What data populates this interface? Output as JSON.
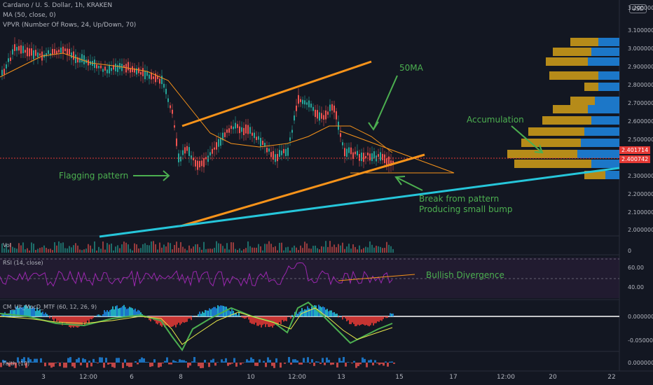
{
  "header": {
    "symbol_line": "Cardano / U. S. Dollar, 1h, KRAKEN",
    "ma_line": "MA (50, close, 0)",
    "vpvr_line": "VPVR (Number Of Rows, 24, Up/Down, 70)",
    "currency_button": "USD"
  },
  "price_axis": {
    "labels": [
      "3.200000",
      "3.100000",
      "3.000000",
      "2.900000",
      "2.800000",
      "2.700000",
      "2.600000",
      "2.500000",
      "2.300000",
      "2.200000",
      "2.100000",
      "2.000000"
    ],
    "tag_high": "2.401714",
    "tag_low": "2.400742"
  },
  "volume_pane": {
    "label": "Vol",
    "axis_label": "0"
  },
  "rsi_pane": {
    "label": "RSI (14, close)",
    "axis_labels": [
      "60.00",
      "40.00"
    ]
  },
  "macd_pane": {
    "label": "CM_Ult_MacD_MTF (60, 12, 26, 9)",
    "axis_labels": [
      "0.000000",
      "-0.050000"
    ]
  },
  "faith_pane": {
    "label": "Faith (10)",
    "axis_label": "0.000000"
  },
  "time_axis": {
    "labels": [
      "3",
      "12:00",
      "6",
      "8",
      "10",
      "12:00",
      "13",
      "15",
      "17",
      "12:00",
      "20",
      "22"
    ]
  },
  "annotations": {
    "ma50": "50MA",
    "accumulation": "Accumulation",
    "flagging": "Flagging pattern",
    "break_line1": "Break from pattern",
    "break_line2": "Producing small bump",
    "bullish_divergence": "Bullish Divergence"
  },
  "colors": {
    "background": "#131722",
    "channel": "#f7931a",
    "trendline": "#26c6da",
    "annotation": "#4caf50",
    "price_line": "#e53935",
    "up_candle": "#26a69a",
    "down_candle": "#ef5350",
    "rsi": "#9c27b0",
    "vp_up": "#d4a017",
    "vp_down": "#1e88e5"
  }
}
